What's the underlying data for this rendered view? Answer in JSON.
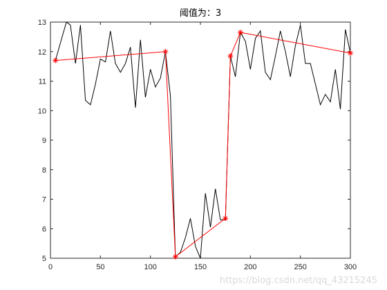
{
  "chart_data": {
    "type": "line",
    "title": "阈值为：3",
    "xlim": [
      0,
      300
    ],
    "ylim": [
      5,
      13
    ],
    "x_ticks": [
      0,
      50,
      100,
      150,
      200,
      250,
      300
    ],
    "y_ticks": [
      5,
      6,
      7,
      8,
      9,
      10,
      11,
      12,
      13
    ],
    "grid": false,
    "series": [
      {
        "color": "#000000",
        "marker": "none",
        "x": [
          5,
          10,
          16,
          20,
          25,
          30,
          35,
          40,
          45,
          50,
          55,
          60,
          65,
          70,
          75,
          80,
          85,
          90,
          95,
          100,
          105,
          110,
          115,
          120,
          125,
          130,
          135,
          140,
          145,
          150,
          155,
          160,
          165,
          170,
          175,
          180,
          185,
          190,
          195,
          200,
          205,
          210,
          215,
          220,
          225,
          230,
          235,
          240,
          245,
          250,
          255,
          260,
          265,
          270,
          275,
          280,
          285,
          290,
          295,
          300
        ],
        "y": [
          11.7,
          12.3,
          13.0,
          12.9,
          11.6,
          12.9,
          10.35,
          10.2,
          10.9,
          11.75,
          11.65,
          12.7,
          11.6,
          11.3,
          11.6,
          12.15,
          10.1,
          12.4,
          10.45,
          11.4,
          10.8,
          11.1,
          12.0,
          10.5,
          5.05,
          5.2,
          5.7,
          6.35,
          5.4,
          5.0,
          7.2,
          6.05,
          7.35,
          6.3,
          6.3,
          11.85,
          11.15,
          12.65,
          12.35,
          11.4,
          12.45,
          12.7,
          11.3,
          11.05,
          11.85,
          12.7,
          12.0,
          11.15,
          12.2,
          12.9,
          11.6,
          11.6,
          10.9,
          10.2,
          10.55,
          10.3,
          11.4,
          10.05,
          12.75,
          11.95
        ]
      },
      {
        "color": "#ff0000",
        "marker": "asterisk",
        "x": [
          5,
          115,
          125,
          175,
          180,
          190,
          300
        ],
        "y": [
          11.7,
          12.0,
          5.05,
          6.35,
          11.85,
          12.65,
          11.95
        ]
      }
    ]
  },
  "watermark": "https://blog.csdn.net/qq_43215245"
}
